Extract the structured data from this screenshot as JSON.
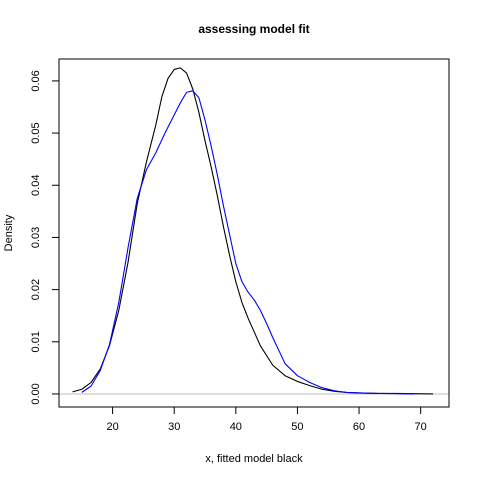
{
  "chart_data": {
    "type": "line",
    "title": "assessing model fit",
    "xlabel": "x, fitted model black",
    "ylabel": "Density",
    "xlim": [
      11.3,
      74.6
    ],
    "ylim": [
      -0.0025,
      0.0642
    ],
    "xticks": [
      20,
      30,
      40,
      50,
      60,
      70
    ],
    "yticks": [
      0.0,
      0.01,
      0.02,
      0.03,
      0.04,
      0.05,
      0.06
    ],
    "ytick_labels": [
      "0.00",
      "0.01",
      "0.02",
      "0.03",
      "0.04",
      "0.05",
      "0.06"
    ],
    "grid": false,
    "legend": "none",
    "reference_line": {
      "y": 0,
      "color": "#bebebe"
    },
    "series": [
      {
        "color": "#000000",
        "x": [
          13.5,
          15,
          16.5,
          18,
          19.5,
          21,
          22.5,
          24,
          25.5,
          27,
          28,
          29,
          30,
          31,
          32,
          33,
          34,
          35,
          36,
          37,
          38,
          39,
          40,
          41,
          42,
          44,
          46,
          48,
          50,
          52,
          54,
          56,
          58,
          60,
          63,
          66,
          69,
          72
        ],
        "y": [
          0.0004,
          0.0009,
          0.0022,
          0.0048,
          0.0093,
          0.016,
          0.0252,
          0.0365,
          0.0445,
          0.0515,
          0.057,
          0.0605,
          0.0622,
          0.0625,
          0.0615,
          0.0585,
          0.054,
          0.0485,
          0.0435,
          0.038,
          0.032,
          0.0265,
          0.0215,
          0.0175,
          0.0145,
          0.0092,
          0.0055,
          0.0035,
          0.0024,
          0.0016,
          0.0009,
          0.0005,
          0.0003,
          0.0002,
          0.0001,
          0.0001,
          5e-05,
          0.0
        ]
      },
      {
        "color": "#0000ff",
        "x": [
          15,
          16.5,
          18,
          19.5,
          21,
          22.5,
          24,
          25.5,
          27,
          28.5,
          30,
          31,
          32,
          33,
          34,
          35,
          36,
          37,
          38,
          39,
          40,
          41,
          42,
          43,
          44,
          45,
          46,
          48,
          50,
          52,
          54,
          56,
          58,
          60,
          63,
          66,
          69
        ],
        "y": [
          0.0003,
          0.0015,
          0.0045,
          0.0095,
          0.0175,
          0.028,
          0.0375,
          0.043,
          0.0462,
          0.05,
          0.0535,
          0.0558,
          0.0578,
          0.0581,
          0.0568,
          0.0525,
          0.0475,
          0.042,
          0.036,
          0.0305,
          0.025,
          0.0215,
          0.0195,
          0.018,
          0.016,
          0.0135,
          0.0108,
          0.0058,
          0.0035,
          0.0022,
          0.0012,
          0.0006,
          0.0003,
          0.0002,
          0.0001,
          5e-05,
          0.0
        ]
      }
    ]
  }
}
